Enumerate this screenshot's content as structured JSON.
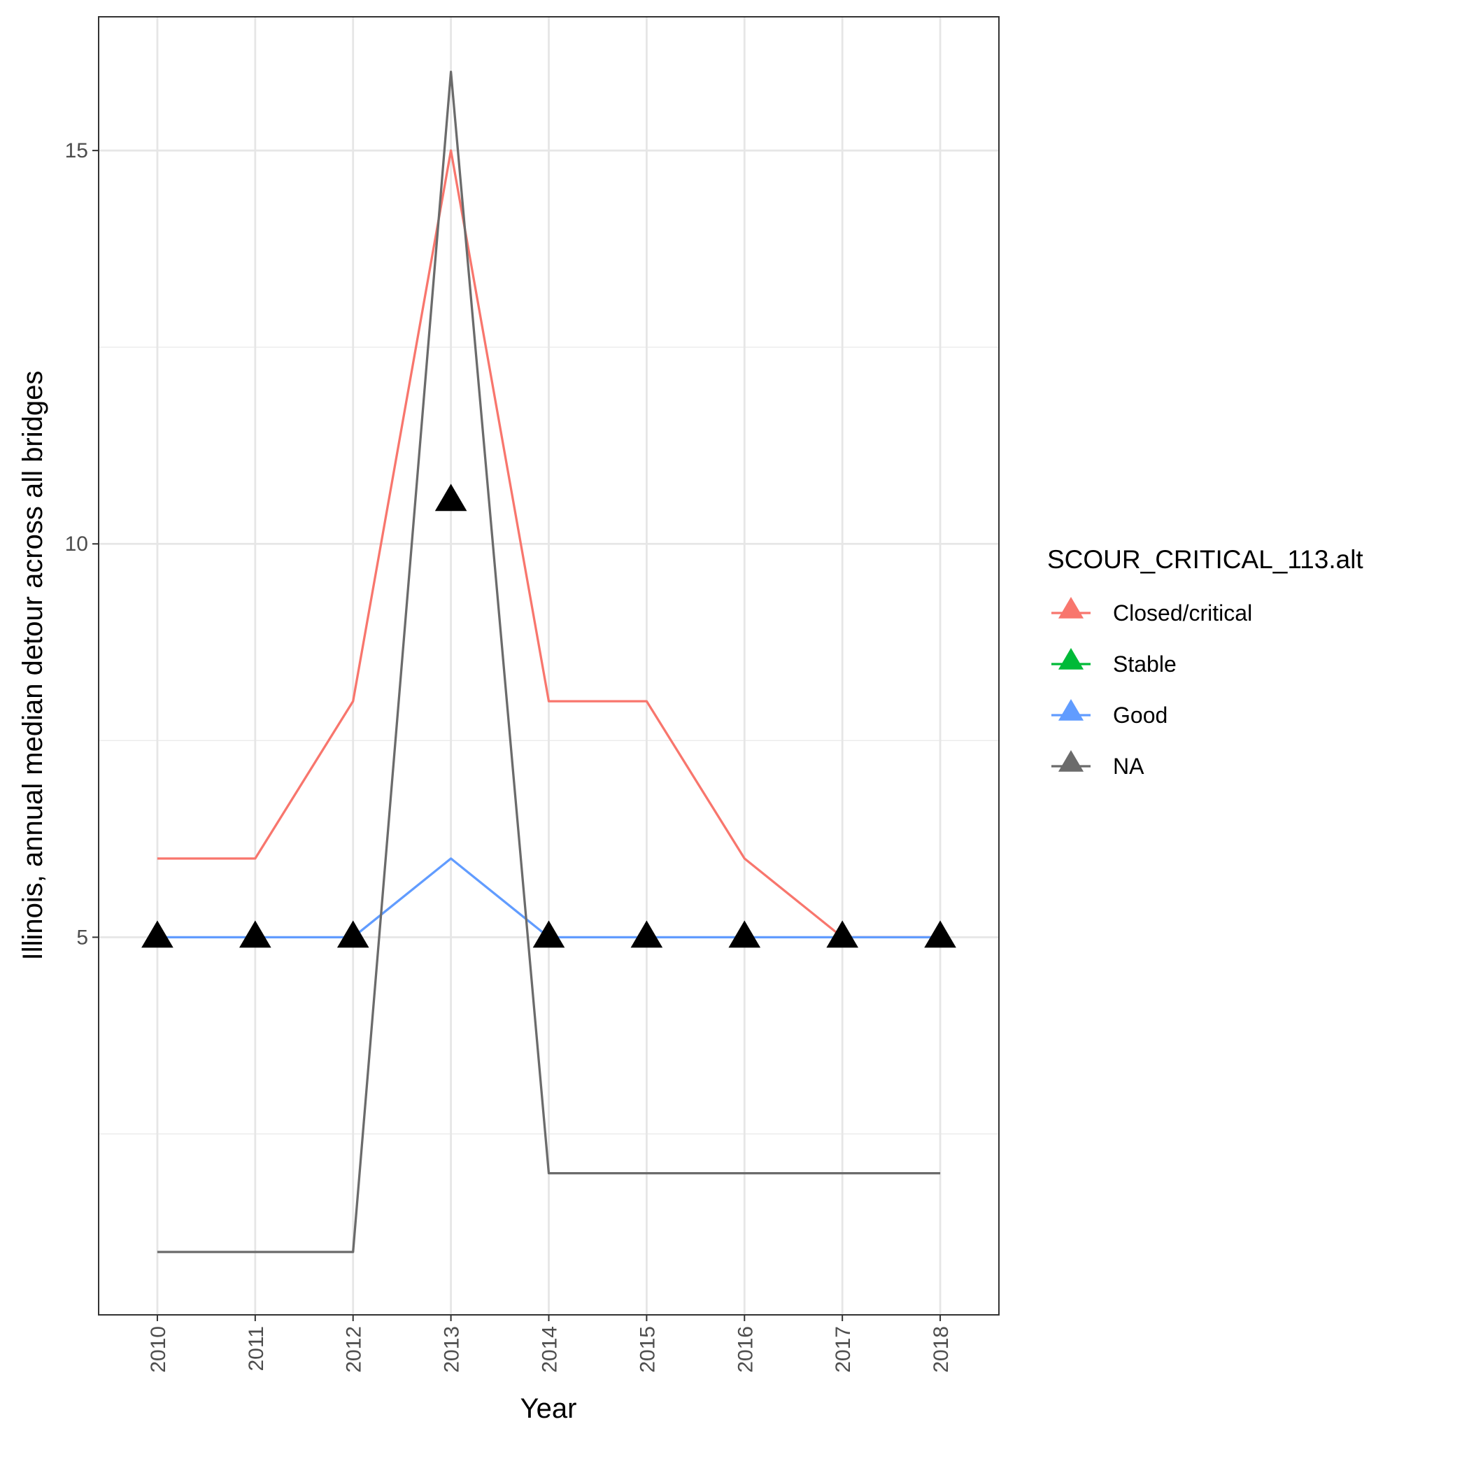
{
  "chart_data": {
    "type": "line",
    "xlabel": "Year",
    "ylabel": "Illinois, annual median detour across all bridges",
    "x": [
      2010,
      2011,
      2012,
      2013,
      2014,
      2015,
      2016,
      2017,
      2018
    ],
    "x_tick_labels": [
      "2010",
      "2011",
      "2012",
      "2013",
      "2014",
      "2015",
      "2016",
      "2017",
      "2018"
    ],
    "y_ticks": [
      5,
      10,
      15
    ],
    "y_tick_labels": [
      "5",
      "10",
      "15"
    ],
    "ylim": [
      0.2,
      16.7
    ],
    "grid": true,
    "legend": {
      "title": "SCOUR_CRITICAL_113.alt",
      "position": "right"
    },
    "series": [
      {
        "name": "Closed/critical",
        "color": "#F8766D",
        "values": [
          6,
          6,
          8,
          15,
          8,
          8,
          6,
          5,
          5
        ]
      },
      {
        "name": "Stable",
        "color": "#00BA38",
        "values": [
          null,
          null,
          null,
          null,
          null,
          null,
          null,
          null,
          null
        ]
      },
      {
        "name": "Good",
        "color": "#619CFF",
        "values": [
          5,
          5,
          5,
          6,
          5,
          5,
          5,
          5,
          5
        ]
      },
      {
        "name": "NA",
        "color": "#6B6B6B",
        "values": [
          1,
          1,
          1,
          16,
          2,
          2,
          2,
          2,
          2
        ]
      }
    ],
    "points": {
      "marker": "triangle",
      "color": "#000000",
      "values": [
        5,
        5,
        5,
        10.55,
        5,
        5,
        5,
        5,
        5
      ]
    }
  }
}
